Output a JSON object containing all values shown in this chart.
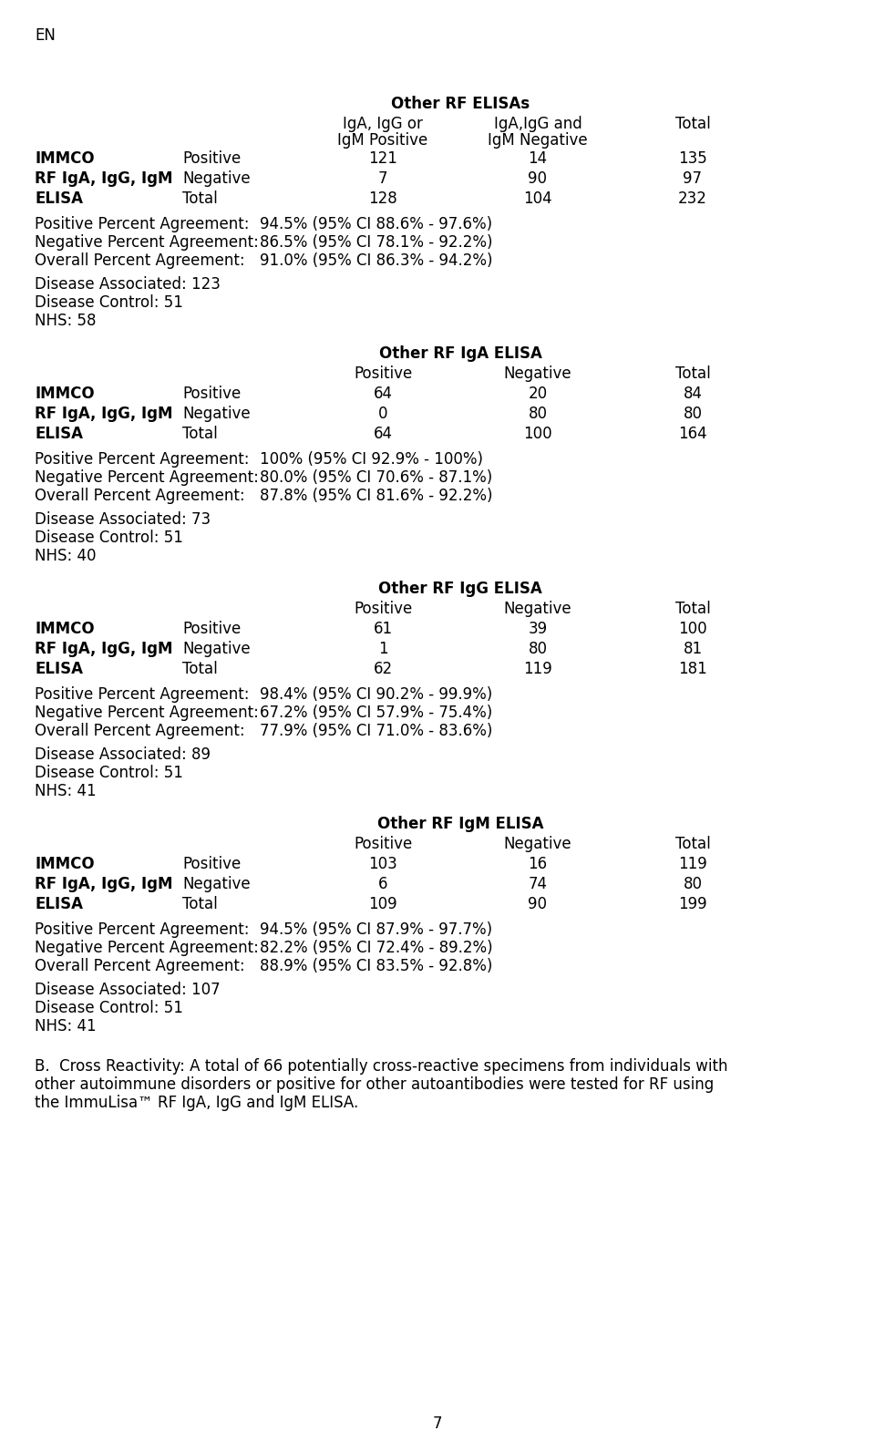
{
  "page_label": "EN",
  "page_number": "7",
  "bg_color": "#ffffff",
  "text_color": "#000000",
  "sections": [
    {
      "header_bold": "Other RF ELISAs",
      "col1_h1": "IgA, IgG or",
      "col1_h2": "IgM Positive",
      "col2_h1": "IgA,IgG and",
      "col2_h2": "IgM Negative",
      "col3_h1": "Total",
      "col3_h2": "",
      "data": [
        [
          121,
          14,
          135
        ],
        [
          7,
          90,
          97
        ],
        [
          128,
          104,
          232
        ]
      ],
      "ppa": "94.5% (95% CI 88.6% - 97.6%)",
      "npa": "86.5% (95% CI 78.1% - 92.2%)",
      "opa": "91.0% (95% CI 86.3% - 94.2%)",
      "disease_associated": "123",
      "disease_control": "51",
      "nhs": "58"
    },
    {
      "header_bold": "Other RF IgA ELISA",
      "col1_h1": "Positive",
      "col1_h2": "",
      "col2_h1": "Negative",
      "col2_h2": "",
      "col3_h1": "Total",
      "col3_h2": "",
      "data": [
        [
          64,
          20,
          84
        ],
        [
          0,
          80,
          80
        ],
        [
          64,
          100,
          164
        ]
      ],
      "ppa": "100% (95% CI 92.9% - 100%)",
      "npa": "80.0% (95% CI 70.6% - 87.1%)",
      "opa": "87.8% (95% CI 81.6% - 92.2%)",
      "disease_associated": "73",
      "disease_control": "51",
      "nhs": "40"
    },
    {
      "header_bold": "Other RF IgG ELISA",
      "col1_h1": "Positive",
      "col1_h2": "",
      "col2_h1": "Negative",
      "col2_h2": "",
      "col3_h1": "Total",
      "col3_h2": "",
      "data": [
        [
          61,
          39,
          100
        ],
        [
          1,
          80,
          81
        ],
        [
          62,
          119,
          181
        ]
      ],
      "ppa": "98.4% (95% CI 90.2% - 99.9%)",
      "npa": "67.2% (95% CI 57.9% - 75.4%)",
      "opa": "77.9% (95% CI 71.0% - 83.6%)",
      "disease_associated": "89",
      "disease_control": "51",
      "nhs": "41"
    },
    {
      "header_bold": "Other RF IgM ELISA",
      "col1_h1": "Positive",
      "col1_h2": "",
      "col2_h1": "Negative",
      "col2_h2": "",
      "col3_h1": "Total",
      "col3_h2": "",
      "data": [
        [
          103,
          16,
          119
        ],
        [
          6,
          74,
          80
        ],
        [
          109,
          90,
          199
        ]
      ],
      "ppa": "94.5% (95% CI 87.9% - 97.7%)",
      "npa": "82.2% (95% CI 72.4% - 89.2%)",
      "opa": "88.9% (95% CI 83.5% - 92.8%)",
      "disease_associated": "107",
      "disease_control": "51",
      "nhs": "41"
    }
  ],
  "footer_b": "B.  Cross Reactivity: A total of 66 potentially cross-reactive specimens from individuals with other autoimmune disorders or positive for other autoantibodies were tested for RF using the ImmuLisa™ RF IgA, IgG and IgM ELISA.",
  "row_labels": [
    [
      "IMMCO",
      "Positive"
    ],
    [
      "RF IgA, IgG, IgM",
      "Negative"
    ],
    [
      "ELISA",
      "Total"
    ]
  ],
  "row_bold": [
    true,
    true,
    true
  ],
  "ppa_label": "Positive Percent Agreement:",
  "npa_label": "Negative Percent Agreement:",
  "opa_label": "Overall Percent Agreement:",
  "font_size_pt": 12
}
